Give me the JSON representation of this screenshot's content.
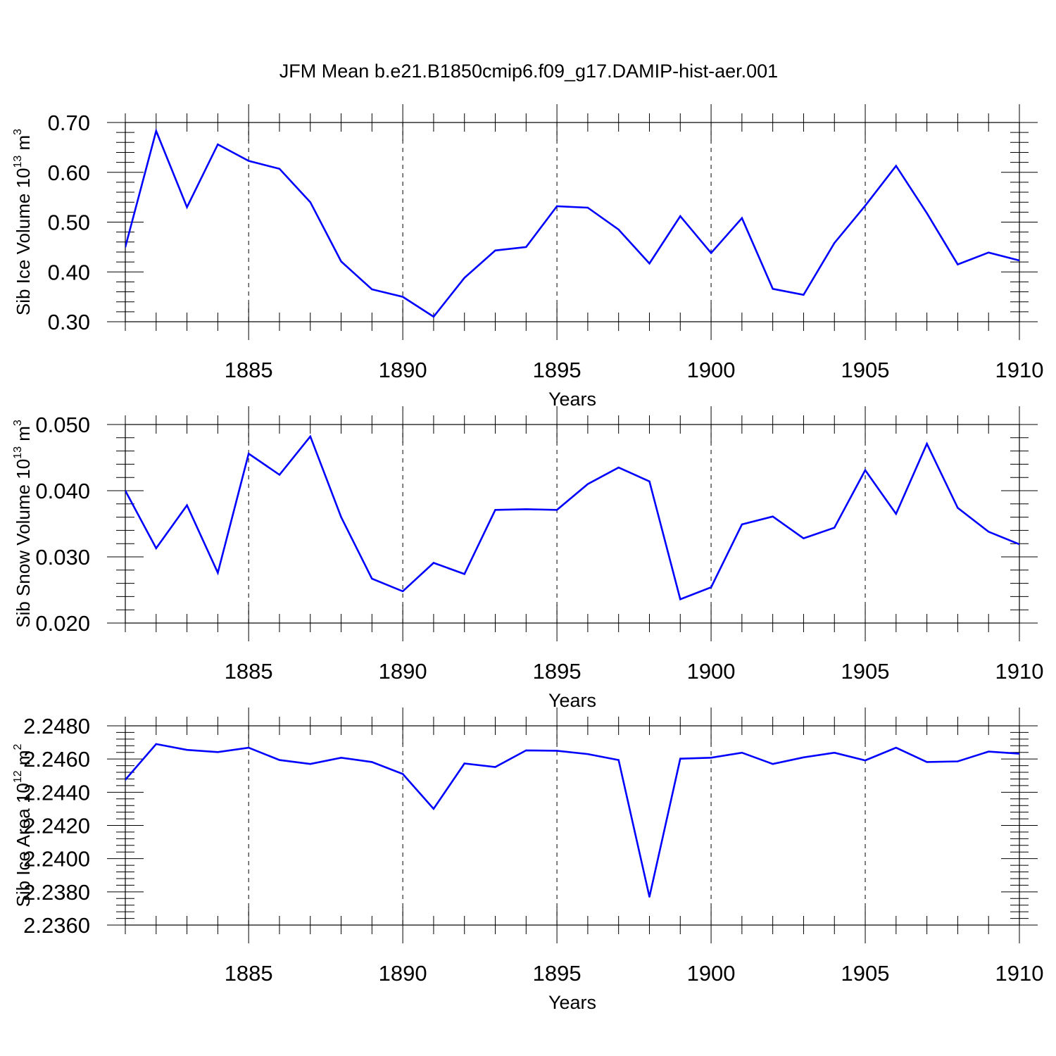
{
  "figure": {
    "title": "JFM Mean b.e21.B1850cmip6.f09_g17.DAMIP-hist-aer.001"
  },
  "chart_data": [
    {
      "type": "line",
      "ylabel": "Sib Ice Volume 10",
      "ylabel_sup": "13",
      "ylabel_unit": "m",
      "ylabel_unit_sup": "3",
      "xlabel": "Years",
      "xlim": [
        1881,
        1910
      ],
      "ylim": [
        0.3,
        0.7
      ],
      "xticks": [
        "1885",
        "1890",
        "1895",
        "1900",
        "1905",
        "1910"
      ],
      "yticks": [
        "0.30",
        "0.40",
        "0.50",
        "0.60",
        "0.70"
      ],
      "grid": "vertical dashed at major x ticks",
      "line_color": "#0000ff",
      "x": [
        1881,
        1882,
        1883,
        1884,
        1885,
        1886,
        1887,
        1888,
        1889,
        1890,
        1891,
        1892,
        1893,
        1894,
        1895,
        1896,
        1897,
        1898,
        1899,
        1900,
        1901,
        1902,
        1903,
        1904,
        1905,
        1906,
        1907,
        1908,
        1909,
        1910
      ],
      "values": [
        0.45,
        0.683,
        0.53,
        0.656,
        0.623,
        0.607,
        0.54,
        0.421,
        0.365,
        0.35,
        0.31,
        0.388,
        0.443,
        0.45,
        0.532,
        0.529,
        0.485,
        0.417,
        0.512,
        0.438,
        0.508,
        0.366,
        0.354,
        0.458,
        0.533,
        0.613,
        0.518,
        0.415,
        0.439,
        0.423
      ]
    },
    {
      "type": "line",
      "ylabel": "Sib Snow Volume 10",
      "ylabel_sup": "13",
      "ylabel_unit": "m",
      "ylabel_unit_sup": "3",
      "xlabel": "Years",
      "xlim": [
        1881,
        1910
      ],
      "ylim": [
        0.02,
        0.05
      ],
      "xticks": [
        "1885",
        "1890",
        "1895",
        "1900",
        "1905",
        "1910"
      ],
      "yticks": [
        "0.020",
        "0.030",
        "0.040",
        "0.050"
      ],
      "grid": "vertical dashed at major x ticks",
      "line_color": "#0000ff",
      "x": [
        1881,
        1882,
        1883,
        1884,
        1885,
        1886,
        1887,
        1888,
        1889,
        1890,
        1891,
        1892,
        1893,
        1894,
        1895,
        1896,
        1897,
        1898,
        1899,
        1900,
        1901,
        1902,
        1903,
        1904,
        1905,
        1906,
        1907,
        1908,
        1909,
        1910
      ],
      "values": [
        0.04,
        0.0313,
        0.0378,
        0.0276,
        0.0456,
        0.0424,
        0.0482,
        0.036,
        0.0267,
        0.0248,
        0.0291,
        0.0274,
        0.0371,
        0.0372,
        0.0371,
        0.041,
        0.0435,
        0.0414,
        0.0236,
        0.0254,
        0.0349,
        0.0361,
        0.0328,
        0.0344,
        0.0431,
        0.0365,
        0.0471,
        0.0374,
        0.0338,
        0.0319
      ]
    },
    {
      "type": "line",
      "ylabel": "Sib Ice Area 10",
      "ylabel_sup": "12",
      "ylabel_unit": "m",
      "ylabel_unit_sup": "2",
      "xlabel": "Years",
      "xlim": [
        1881,
        1910
      ],
      "ylim": [
        2.236,
        2.248
      ],
      "xticks": [
        "1885",
        "1890",
        "1895",
        "1900",
        "1905",
        "1910"
      ],
      "yticks": [
        "2.2360",
        "2.2380",
        "2.2400",
        "2.2420",
        "2.2440",
        "2.2460",
        "2.2480"
      ],
      "grid": "vertical dashed at major x ticks",
      "line_color": "#0000ff",
      "x": [
        1881,
        1882,
        1883,
        1884,
        1885,
        1886,
        1887,
        1888,
        1889,
        1890,
        1891,
        1892,
        1893,
        1894,
        1895,
        1896,
        1897,
        1898,
        1899,
        1900,
        1901,
        1902,
        1903,
        1904,
        1905,
        1906,
        1907,
        1908,
        1909,
        1910
      ],
      "values": [
        2.24475,
        2.2469,
        2.24655,
        2.24642,
        2.24668,
        2.24594,
        2.2457,
        2.24608,
        2.24582,
        2.2451,
        2.243,
        2.24573,
        2.24552,
        2.24652,
        2.2465,
        2.2463,
        2.24594,
        2.2377,
        2.24602,
        2.24608,
        2.24638,
        2.2457,
        2.2461,
        2.24638,
        2.24592,
        2.24668,
        2.24582,
        2.24586,
        2.24645,
        2.24632
      ]
    }
  ]
}
